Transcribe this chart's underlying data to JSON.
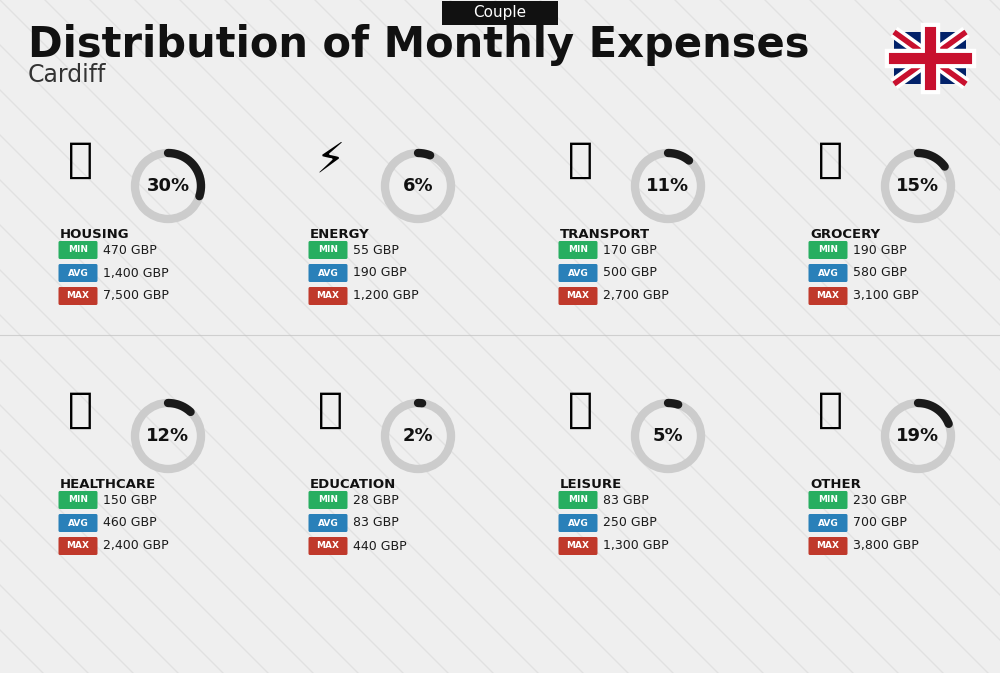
{
  "title": "Distribution of Monthly Expenses",
  "subtitle": "Cardiff",
  "tag": "Couple",
  "bg_color": "#efefef",
  "categories": [
    {
      "name": "HOUSING",
      "pct": 30,
      "min": "470 GBP",
      "avg": "1,400 GBP",
      "max": "7,500 GBP",
      "col": 0,
      "row": 0
    },
    {
      "name": "ENERGY",
      "pct": 6,
      "min": "55 GBP",
      "avg": "190 GBP",
      "max": "1,200 GBP",
      "col": 1,
      "row": 0
    },
    {
      "name": "TRANSPORT",
      "pct": 11,
      "min": "170 GBP",
      "avg": "500 GBP",
      "max": "2,700 GBP",
      "col": 2,
      "row": 0
    },
    {
      "name": "GROCERY",
      "pct": 15,
      "min": "190 GBP",
      "avg": "580 GBP",
      "max": "3,100 GBP",
      "col": 3,
      "row": 0
    },
    {
      "name": "HEALTHCARE",
      "pct": 12,
      "min": "150 GBP",
      "avg": "460 GBP",
      "max": "2,400 GBP",
      "col": 0,
      "row": 1
    },
    {
      "name": "EDUCATION",
      "pct": 2,
      "min": "28 GBP",
      "avg": "83 GBP",
      "max": "440 GBP",
      "col": 1,
      "row": 1
    },
    {
      "name": "LEISURE",
      "pct": 5,
      "min": "83 GBP",
      "avg": "250 GBP",
      "max": "1,300 GBP",
      "col": 2,
      "row": 1
    },
    {
      "name": "OTHER",
      "pct": 19,
      "min": "230 GBP",
      "avg": "700 GBP",
      "max": "3,800 GBP",
      "col": 3,
      "row": 1
    }
  ],
  "min_color": "#27ae60",
  "avg_color": "#2980b9",
  "max_color": "#c0392b",
  "arc_color_filled": "#1a1a1a",
  "arc_color_empty": "#cccccc"
}
